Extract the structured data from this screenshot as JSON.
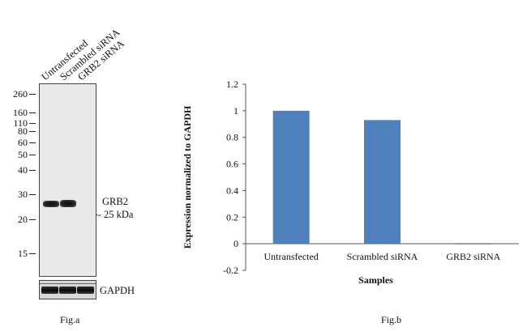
{
  "fig_a": {
    "lanes": [
      "Untransfected",
      "Scrambled siRNA",
      "GRB2 siRNA"
    ],
    "markers": [
      "260",
      "160",
      "110",
      "80",
      "60",
      "50",
      "40",
      "30",
      "20",
      "15"
    ],
    "band_label": "GRB2",
    "band_size": "25 kDa",
    "loading_label": "GAPDH",
    "caption": "Fig.a"
  },
  "fig_b": {
    "caption": "Fig.b"
  },
  "chart_data": {
    "type": "bar",
    "categories": [
      "Untransfected",
      "Scrambled siRNA",
      "GRB2 siRNA"
    ],
    "values": [
      1.0,
      0.93,
      0.0
    ],
    "title": "",
    "xlabel": "Samples",
    "ylabel": "Expression normalized to GAPDH",
    "ylim": [
      -0.2,
      1.2
    ],
    "yticks": [
      "1.2",
      "1",
      "0.8",
      "0.6",
      "0.4",
      "0.2",
      "0",
      "-0.2"
    ],
    "bar_color": "#4f81bd",
    "grid": false,
    "legend": "none"
  }
}
